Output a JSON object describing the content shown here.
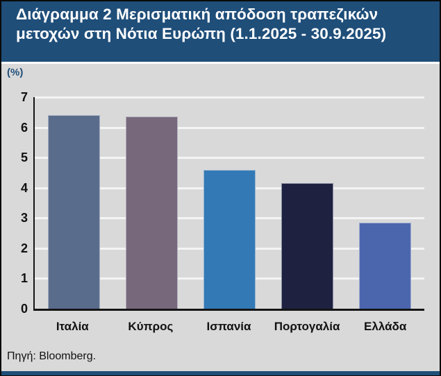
{
  "figure": {
    "title": "Διάγραμμα 2 Μερισματική απόδοση τραπεζικών μετοχών στη Νότια Ευρώπη (1.1.2025 - 30.9.2025)",
    "unit_label": "(%)",
    "source": "Πηγή: Bloomberg."
  },
  "colors": {
    "title_band_bg": "#1f4e79",
    "title_text": "#ffffff",
    "body_bg": "#d9d9d9",
    "gridline": "#f4f4f4",
    "axis": "#141414",
    "unit_label": "#1f4e79",
    "bottom_strip": "#1f4e79"
  },
  "chart_data": {
    "type": "bar",
    "title": "Διάγραμμα 2 Μερισματική απόδοση τραπεζικών μετοχών στη Νότια Ευρώπη (1.1.2025 - 30.9.2025)",
    "categories": [
      "Ιταλία",
      "Κύπρος",
      "Ισπανία",
      "Πορτογαλία",
      "Ελλάδα"
    ],
    "values": [
      6.4,
      6.35,
      4.6,
      4.15,
      2.85
    ],
    "bar_colors": [
      "#5a6c8c",
      "#77687c",
      "#3379b5",
      "#1e2240",
      "#4c66ae"
    ],
    "xlabel": "",
    "ylabel": "(%)",
    "ylim": [
      0,
      7
    ],
    "yticks": [
      0,
      1,
      2,
      3,
      4,
      5,
      6,
      7
    ],
    "grid": true,
    "legend": false,
    "source": "Πηγή: Bloomberg."
  }
}
